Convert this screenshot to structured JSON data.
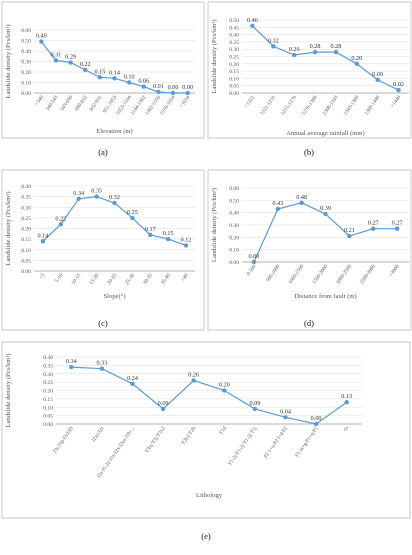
{
  "chart_data": [
    {
      "id": "a",
      "letter": "(a)",
      "type": "line",
      "ylabel": "Landslide density (Pcs/km²)",
      "xlabel": "Elevation (m)",
      "ylim": [
        0,
        0.6
      ],
      "yticks": [
        "0.00",
        "0.10",
        "0.20",
        "0.30",
        "0.40",
        "0.50",
        "0.60"
      ],
      "categories": [
        "<340",
        "340-543",
        "543-690",
        "690-832",
        "832-951",
        "951-1053",
        "1053-1144",
        "1144-1302",
        "1302-1556",
        "1556-1654",
        ">1654"
      ],
      "values": [
        0.49,
        0.31,
        0.29,
        0.22,
        0.15,
        0.14,
        0.1,
        0.06,
        0.01,
        0.0,
        0.0
      ],
      "labels": [
        "0.49",
        "0.31",
        "0.29",
        "0.22",
        "0.15",
        "0.14",
        "0.10",
        "0.06",
        "0.01",
        "0.00",
        "0.00"
      ]
    },
    {
      "id": "b",
      "letter": "(b)",
      "type": "line",
      "ylabel": "Landslide density (Pcs/km²)",
      "xlabel": "Annual average rainfall (mm)",
      "ylim": [
        0,
        0.5
      ],
      "yticks": [
        "0.00",
        "0.05",
        "0.10",
        "0.15",
        "0.20",
        "0.25",
        "0.30",
        "0.35",
        "0.40",
        "0.45",
        "0.50"
      ],
      "categories": [
        "<1221",
        "1221-1251",
        "1251-1276",
        "1276-1308",
        "1308-1343",
        "1343-1389",
        "1389-1440",
        ">1440"
      ],
      "values": [
        0.46,
        0.32,
        0.26,
        0.28,
        0.28,
        0.2,
        0.09,
        0.02
      ],
      "labels": [
        "0.46",
        "0.32",
        "0.26",
        "0.28",
        "0.28",
        "0.20",
        "0.09",
        "0.02"
      ]
    },
    {
      "id": "c",
      "letter": "(c)",
      "type": "line",
      "ylabel": "Landslide density (Pcs/km²)",
      "xlabel": "Slope(°)",
      "ylim": [
        0,
        0.4
      ],
      "yticks": [
        "0.00",
        "0.05",
        "0.10",
        "0.15",
        "0.20",
        "0.25",
        "0.30",
        "0.35",
        "0.40"
      ],
      "categories": [
        "<5",
        "5-10",
        "10-15",
        "15-20",
        "20-25",
        "25-30",
        "30-35",
        "35-40",
        ">40"
      ],
      "values": [
        0.14,
        0.22,
        0.34,
        0.35,
        0.32,
        0.25,
        0.17,
        0.15,
        0.12
      ],
      "labels": [
        "0.14",
        "0.22",
        "0.34",
        "0.35",
        "0.32",
        "0.25",
        "0.17",
        "0.15",
        "0.12"
      ]
    },
    {
      "id": "d",
      "letter": "(d)",
      "type": "line",
      "ylabel": "Landslide density (Pcs/km²)",
      "xlabel": "Distance from fault (m)",
      "ylim": [
        0,
        0.6
      ],
      "yticks": [
        "0.00",
        "0.10",
        "0.20",
        "0.30",
        "0.40",
        "0.50",
        "0.60"
      ],
      "categories": [
        "0-500",
        "500-1000",
        "1000-1500",
        "1500-2000",
        "2000-2500",
        "2500-3000",
        ">3000"
      ],
      "values": [
        0.0,
        0.43,
        0.48,
        0.39,
        0.21,
        0.27,
        0.27
      ],
      "labels": [
        "0.00",
        "0.43",
        "0.48",
        "0.39",
        "0.21",
        "0.27",
        "0.27"
      ]
    },
    {
      "id": "e",
      "letter": "(e)",
      "type": "line",
      "ylabel": "Landslide density (Pcs/km²)",
      "xlabel": "Lithology",
      "ylim": [
        0,
        0.4
      ],
      "yticks": [
        "0.00",
        "0.05",
        "0.10",
        "0.15",
        "0.20",
        "0.25",
        "0.30",
        "0.35",
        "0.40"
      ],
      "categories": [
        "J3s/J3p/J3/J3D",
        "J2xs/J2s",
        "J2z/J1-2z/J1z/J2x/J2ez/J1b-...",
        "T3xj/T3j/T3x2",
        "T2b2/T2b",
        "T1d",
        "T1-2j/T1-2j/T1-2j/T1j",
        "P2 1+u/P2 l+d/P2",
        "P1 m+g/P1+q/P1",
        "O"
      ],
      "values": [
        0.34,
        0.33,
        0.24,
        0.09,
        0.26,
        0.2,
        0.09,
        0.04,
        0.0,
        0.13
      ],
      "labels": [
        "0.34",
        "0.33",
        "0.24",
        "0.09",
        "0.26",
        "0.20",
        "0.09",
        "0.04",
        "0.00",
        "0.13"
      ]
    }
  ]
}
